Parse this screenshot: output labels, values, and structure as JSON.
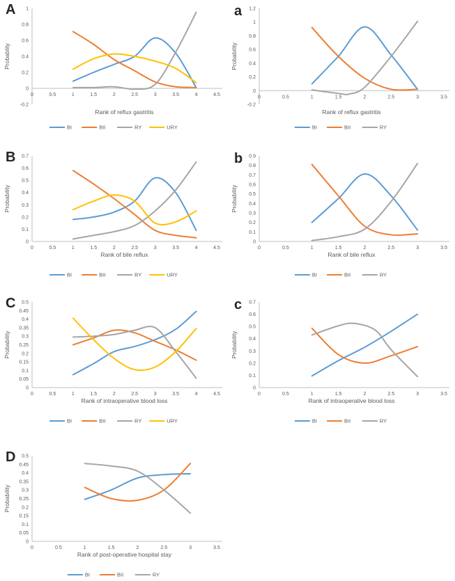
{
  "colors": {
    "axis": "#BFBFBF",
    "tick_text": "#595959",
    "panel_label": "#262626",
    "BI": "#5B9BD5",
    "BII": "#ED7D31",
    "RY": "#A5A5A5",
    "URY": "#FFC000"
  },
  "chart_data": [
    {
      "panel": "A",
      "type": "line",
      "xlabel": "Rank of reflux gastritis",
      "ylabel": "Probablity",
      "xlim": [
        0,
        4.5
      ],
      "ylim": [
        -0.2,
        1
      ],
      "xticks": [
        0,
        0.5,
        1,
        1.5,
        2,
        2.5,
        3,
        3.5,
        4,
        4.5
      ],
      "yticks": [
        -0.2,
        0,
        0.2,
        0.4,
        0.6,
        0.8,
        1
      ],
      "grid": false,
      "legend_position": "bottom",
      "x": [
        1,
        1.5,
        2,
        2.5,
        3,
        3.5,
        4
      ],
      "series": [
        {
          "name": "BI",
          "color": "#5B9BD5",
          "values": [
            0.09,
            0.2,
            0.3,
            0.4,
            0.63,
            0.44,
            0.01
          ]
        },
        {
          "name": "BII",
          "color": "#ED7D31",
          "values": [
            0.71,
            0.55,
            0.36,
            0.22,
            0.08,
            0.02,
            0.01
          ]
        },
        {
          "name": "RY",
          "color": "#A5A5A5",
          "values": [
            0.01,
            0.01,
            0.02,
            -0.01,
            0.05,
            0.45,
            0.95
          ]
        },
        {
          "name": "URY",
          "color": "#FFC000",
          "values": [
            0.24,
            0.37,
            0.43,
            0.4,
            0.34,
            0.25,
            0.07
          ]
        }
      ]
    },
    {
      "panel": "a",
      "type": "line",
      "xlabel": "Rank of reflux gastritis",
      "ylabel": "Probability",
      "xlim": [
        0,
        3.5
      ],
      "ylim": [
        -0.2,
        1.2
      ],
      "xticks": [
        0,
        0.5,
        1,
        1.5,
        2,
        2.5,
        3,
        3.5
      ],
      "yticks": [
        -0.2,
        0,
        0.2,
        0.4,
        0.6,
        0.8,
        1,
        1.2
      ],
      "grid": false,
      "legend_position": "bottom",
      "x": [
        1,
        1.5,
        2,
        2.5,
        3
      ],
      "series": [
        {
          "name": "BI",
          "color": "#5B9BD5",
          "values": [
            0.1,
            0.5,
            0.93,
            0.52,
            0.02
          ]
        },
        {
          "name": "BII",
          "color": "#ED7D31",
          "values": [
            0.92,
            0.5,
            0.18,
            0.02,
            0.02
          ]
        },
        {
          "name": "RY",
          "color": "#A5A5A5",
          "x": [
            1,
            1.5,
            1.7,
            2,
            2.5,
            3
          ],
          "values": [
            0.01,
            -0.04,
            -0.05,
            0.05,
            0.5,
            1.01
          ]
        }
      ]
    },
    {
      "panel": "B",
      "type": "line",
      "xlabel": "Rank of bile reflux",
      "ylabel": "Probability",
      "xlim": [
        0,
        4.5
      ],
      "ylim": [
        0,
        0.7
      ],
      "xticks": [
        0,
        0.5,
        1,
        1.5,
        2,
        2.5,
        3,
        3.5,
        4,
        4.5
      ],
      "yticks": [
        0,
        0.1,
        0.2,
        0.3,
        0.4,
        0.5,
        0.6,
        0.7
      ],
      "grid": false,
      "legend_position": "bottom",
      "x": [
        1,
        1.5,
        2,
        2.5,
        3,
        3.5,
        4
      ],
      "series": [
        {
          "name": "BI",
          "color": "#5B9BD5",
          "values": [
            0.18,
            0.2,
            0.24,
            0.33,
            0.52,
            0.4,
            0.09
          ]
        },
        {
          "name": "BII",
          "color": "#ED7D31",
          "values": [
            0.58,
            0.47,
            0.35,
            0.22,
            0.09,
            0.05,
            0.03
          ]
        },
        {
          "name": "RY",
          "color": "#A5A5A5",
          "values": [
            0.02,
            0.05,
            0.08,
            0.13,
            0.25,
            0.42,
            0.65
          ]
        },
        {
          "name": "URY",
          "color": "#FFC000",
          "values": [
            0.26,
            0.33,
            0.38,
            0.33,
            0.15,
            0.16,
            0.25
          ]
        }
      ]
    },
    {
      "panel": "b",
      "type": "line",
      "xlabel": "Rank of bile reflux",
      "ylabel": "Probability",
      "xlim": [
        0,
        3.5
      ],
      "ylim": [
        0,
        0.9
      ],
      "xticks": [
        0,
        0.5,
        1,
        1.5,
        2,
        2.5,
        3,
        3.5
      ],
      "yticks": [
        0,
        0.1,
        0.2,
        0.3,
        0.4,
        0.5,
        0.6,
        0.7,
        0.8,
        0.9
      ],
      "grid": false,
      "legend_position": "bottom",
      "x": [
        1,
        1.5,
        2,
        2.5,
        3
      ],
      "series": [
        {
          "name": "BI",
          "color": "#5B9BD5",
          "values": [
            0.2,
            0.45,
            0.71,
            0.48,
            0.12
          ]
        },
        {
          "name": "BII",
          "color": "#ED7D31",
          "values": [
            0.81,
            0.48,
            0.16,
            0.07,
            0.08
          ]
        },
        {
          "name": "RY",
          "color": "#A5A5A5",
          "values": [
            0.01,
            0.05,
            0.13,
            0.42,
            0.82
          ]
        }
      ]
    },
    {
      "panel": "C",
      "type": "line",
      "xlabel": "Rank of intraoperative blood loss",
      "ylabel": "Probability",
      "xlim": [
        0,
        4.5
      ],
      "ylim": [
        0,
        0.5
      ],
      "xticks": [
        0,
        0.5,
        1,
        1.5,
        2,
        2.5,
        3,
        3.5,
        4,
        4.5
      ],
      "yticks": [
        0,
        0.05,
        0.1,
        0.15,
        0.2,
        0.25,
        0.3,
        0.35,
        0.4,
        0.45,
        0.5
      ],
      "grid": false,
      "legend_position": "bottom",
      "x": [
        1,
        1.5,
        2,
        2.5,
        3,
        3.5,
        4
      ],
      "series": [
        {
          "name": "BI",
          "color": "#5B9BD5",
          "values": [
            0.075,
            0.14,
            0.21,
            0.24,
            0.28,
            0.34,
            0.445
          ]
        },
        {
          "name": "BII",
          "color": "#ED7D31",
          "values": [
            0.25,
            0.29,
            0.335,
            0.32,
            0.27,
            0.22,
            0.16
          ]
        },
        {
          "name": "RY",
          "color": "#A5A5A5",
          "values": [
            0.295,
            0.3,
            0.31,
            0.335,
            0.35,
            0.21,
            0.055
          ]
        },
        {
          "name": "URY",
          "color": "#FFC000",
          "values": [
            0.405,
            0.28,
            0.17,
            0.105,
            0.12,
            0.21,
            0.345
          ]
        }
      ]
    },
    {
      "panel": "c",
      "type": "line",
      "xlabel": "Rank of intraoperative blood loss",
      "ylabel": "Probability",
      "xlim": [
        0,
        3.5
      ],
      "ylim": [
        0,
        0.7
      ],
      "xticks": [
        0,
        0.5,
        1,
        1.5,
        2,
        2.5,
        3,
        3.5
      ],
      "yticks": [
        0,
        0.1,
        0.2,
        0.3,
        0.4,
        0.5,
        0.6,
        0.7
      ],
      "grid": false,
      "legend_position": "bottom",
      "x": [
        1,
        1.5,
        2,
        2.5,
        3
      ],
      "series": [
        {
          "name": "BI",
          "color": "#5B9BD5",
          "values": [
            0.095,
            0.22,
            0.33,
            0.46,
            0.6
          ]
        },
        {
          "name": "BII",
          "color": "#ED7D31",
          "values": [
            0.485,
            0.27,
            0.2,
            0.26,
            0.335
          ]
        },
        {
          "name": "RY",
          "color": "#A5A5A5",
          "x": [
            1,
            1.5,
            1.8,
            2.2,
            2.5,
            3
          ],
          "values": [
            0.43,
            0.505,
            0.525,
            0.47,
            0.31,
            0.09
          ]
        }
      ]
    },
    {
      "panel": "D",
      "type": "line",
      "xlabel": "Rank of post-operative hospital stay",
      "ylabel": "Probability",
      "xlim": [
        0,
        3.5
      ],
      "ylim": [
        0,
        0.5
      ],
      "xticks": [
        0,
        0.5,
        1,
        1.5,
        2,
        2.5,
        3,
        3.5
      ],
      "yticks": [
        0,
        0.05,
        0.1,
        0.15,
        0.2,
        0.25,
        0.3,
        0.35,
        0.4,
        0.45,
        0.5
      ],
      "grid": false,
      "legend_position": "bottom",
      "x": [
        1,
        1.5,
        2,
        2.5,
        3
      ],
      "series": [
        {
          "name": "BI",
          "color": "#5B9BD5",
          "values": [
            0.245,
            0.3,
            0.37,
            0.39,
            0.395
          ]
        },
        {
          "name": "BII",
          "color": "#ED7D31",
          "values": [
            0.315,
            0.25,
            0.24,
            0.3,
            0.455
          ]
        },
        {
          "name": "RY",
          "color": "#A5A5A5",
          "values": [
            0.455,
            0.44,
            0.41,
            0.3,
            0.165
          ]
        }
      ]
    }
  ]
}
